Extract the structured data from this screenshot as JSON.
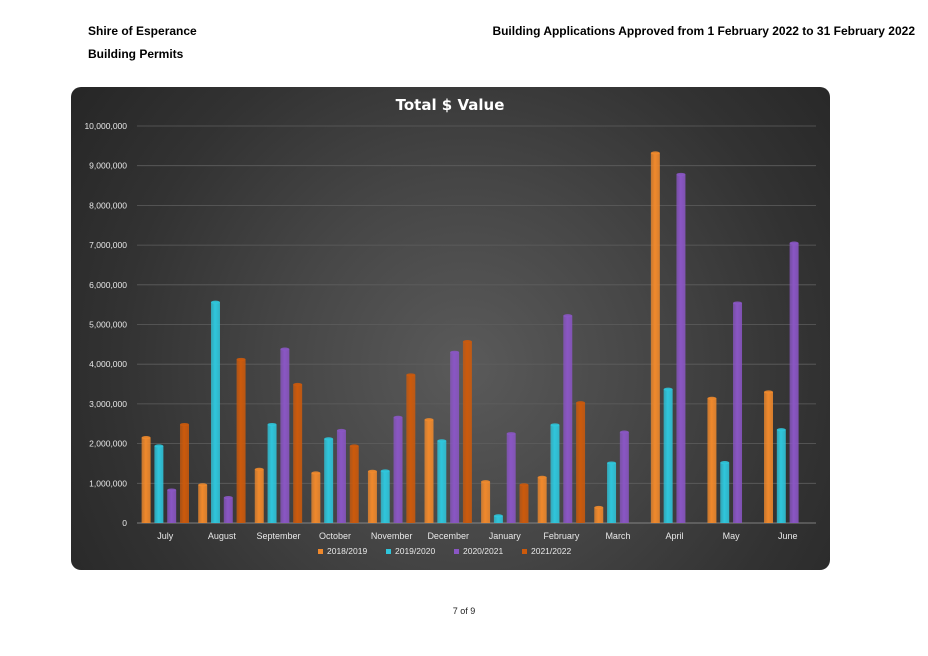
{
  "header": {
    "organization": "Shire of Esperance",
    "subtitle": "Building Permits",
    "report_title": "Building Applications  Approved from 1 February 2022 to 31 February 2022"
  },
  "footer": {
    "page": "7 of 9"
  },
  "colors": {
    "2018/2019": "#f0892c",
    "2019/2020": "#2fc6dc",
    "2020/2021": "#8a56c4",
    "2021/2022": "#cc5a0c"
  },
  "chart_data": {
    "type": "bar",
    "title": "Total $ Value",
    "categories": [
      "July",
      "August",
      "September",
      "October",
      "November",
      "December",
      "January",
      "February",
      "March",
      "April",
      "May",
      "June"
    ],
    "series": [
      {
        "name": "2018/2019",
        "values": [
          2150000,
          960000,
          1350000,
          1260000,
          1300000,
          2600000,
          1040000,
          1150000,
          390000,
          9320000,
          3140000,
          3300000
        ]
      },
      {
        "name": "2019/2020",
        "values": [
          1940000,
          5560000,
          2480000,
          2120000,
          1310000,
          2070000,
          180000,
          2470000,
          1510000,
          3370000,
          1520000,
          2350000
        ]
      },
      {
        "name": "2020/2021",
        "values": [
          830000,
          640000,
          4380000,
          2330000,
          2660000,
          4300000,
          2250000,
          5220000,
          2290000,
          8780000,
          5540000,
          7050000
        ]
      },
      {
        "name": "2021/2022",
        "values": [
          2480000,
          4120000,
          3490000,
          1940000,
          3730000,
          4570000,
          960000,
          3030000,
          null,
          null,
          null,
          null
        ]
      }
    ],
    "y_ticks": [
      "0",
      "1,000,000",
      "2,000,000",
      "3,000,000",
      "4,000,000",
      "5,000,000",
      "6,000,000",
      "7,000,000",
      "8,000,000",
      "9,000,000",
      "10,000,000"
    ],
    "ylim": [
      0,
      10000000
    ],
    "grid": true,
    "legend_position": "bottom"
  }
}
